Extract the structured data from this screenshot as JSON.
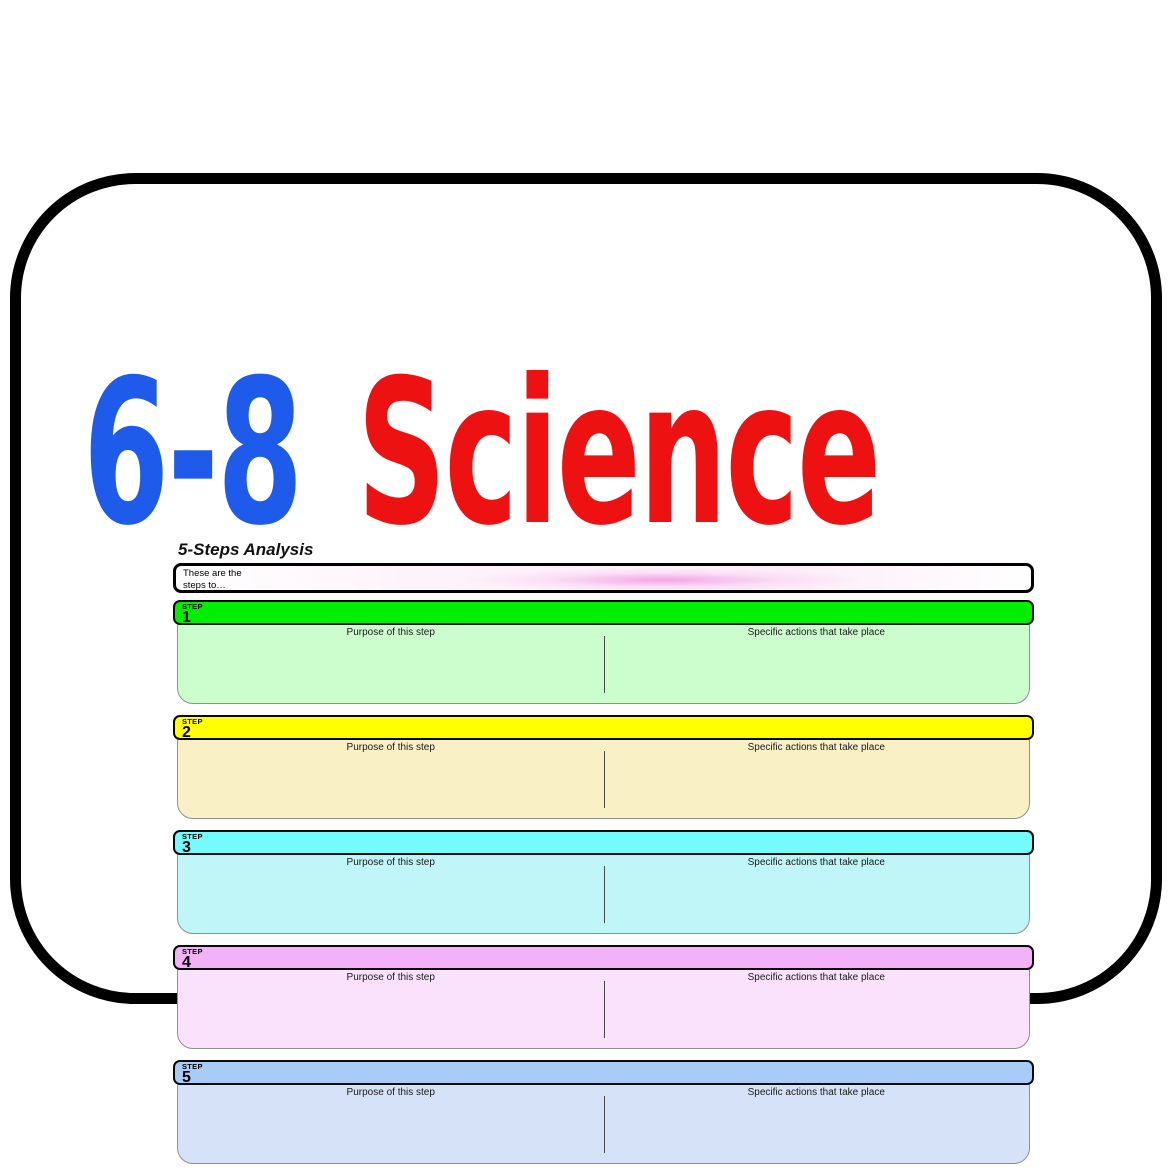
{
  "page": {
    "background_color": "#ffffff",
    "card_border_color": "#000000"
  },
  "header": {
    "grade_label": "6-8",
    "grade_color": "#1f5beb",
    "subject_label": "Science",
    "subject_color": "#ee1111",
    "organizer_subtitle": "5-Steps Analysis"
  },
  "intro": {
    "line1": "These are the",
    "line2": "steps to…",
    "accent_color": "#f287df"
  },
  "columns": {
    "purpose_label": "Purpose of this step",
    "actions_label": "Specific actions that take place"
  },
  "steps": [
    {
      "label": "STEP",
      "number": "1",
      "header_color": "#00ee00",
      "body_color": "#ccfecd"
    },
    {
      "label": "STEP",
      "number": "2",
      "header_color": "#ffff00",
      "body_color": "#faf0c6"
    },
    {
      "label": "STEP",
      "number": "3",
      "header_color": "#74fbfb",
      "body_color": "#c0f6f8"
    },
    {
      "label": "STEP",
      "number": "4",
      "header_color": "#f3b1f7",
      "body_color": "#fbe2fc"
    },
    {
      "label": "STEP",
      "number": "5",
      "header_color": "#a8ccf7",
      "body_color": "#d6e2f8"
    }
  ]
}
